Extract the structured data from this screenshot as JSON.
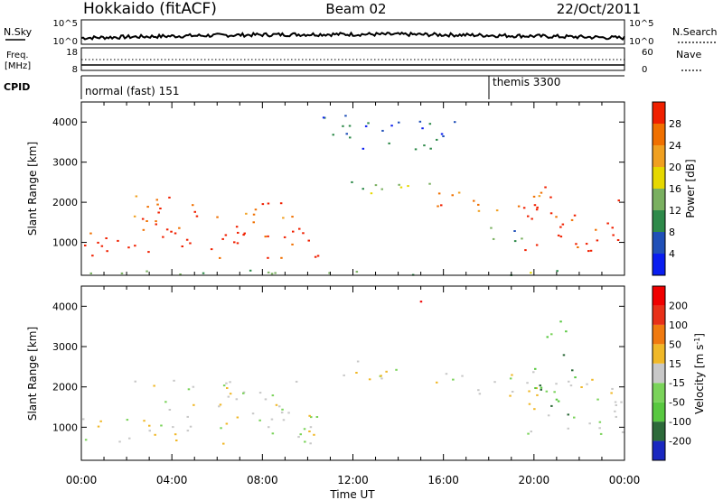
{
  "header": {
    "radar": "Hokkaido (fitACF)",
    "beam": "Beam 02",
    "date": "22/Oct/2011"
  },
  "summary": {
    "nsky_label": "N.Sky",
    "nsky_ticks": [
      "10^5",
      "10^0"
    ],
    "nsearch_label": "N.Search",
    "nsearch_ticks": [
      "10^5",
      "10^0"
    ],
    "freq_label_1": "Freq.",
    "freq_label_2": "[MHz]",
    "freq_ticks": [
      "18",
      "8"
    ],
    "nave_label": "Nave",
    "nave_ticks": [
      "60",
      "0"
    ],
    "cpid_label": "CPID",
    "cpid_segments": [
      {
        "label": "normal (fast) 151",
        "start_hour": 0
      },
      {
        "label": "themis 3300",
        "start_hour": 18.0
      }
    ]
  },
  "axes": {
    "ylabel": "Slant Range [km]",
    "yticks": [
      "4000",
      "3000",
      "2000",
      "1000"
    ],
    "xticks": [
      "00:00",
      "04:00",
      "08:00",
      "12:00",
      "16:00",
      "20:00",
      "00:00"
    ],
    "xlabel": "Time UT"
  },
  "chart_data": [
    {
      "type": "heatmap",
      "name": "power",
      "x_range_hours": [
        0,
        24
      ],
      "y_range_km": [
        180,
        4500
      ],
      "colorbar_label": "Power [dB]",
      "colorbar_ticks": [
        "28",
        "24",
        "20",
        "16",
        "12",
        "8",
        "4"
      ],
      "colors": [
        "#0a1ef0",
        "#2050b8",
        "#2e8a4a",
        "#7ab060",
        "#e6d800",
        "#f0a020",
        "#f07000",
        "#f02000"
      ],
      "regions": [
        {
          "t0": 0.0,
          "t1": 10.5,
          "r0": 600,
          "r1": 1500,
          "level": 7
        },
        {
          "t0": 2.0,
          "t1": 9.5,
          "r0": 1500,
          "r1": 2200,
          "level": 6
        },
        {
          "t0": 11.5,
          "t1": 15.5,
          "r0": 2200,
          "r1": 2700,
          "level": 3
        },
        {
          "t0": 15.5,
          "t1": 20.5,
          "r0": 1800,
          "r1": 2400,
          "level": 6
        },
        {
          "t0": 19.5,
          "t1": 24.0,
          "r0": 800,
          "r1": 2200,
          "level": 7
        },
        {
          "t0": 17.5,
          "t1": 19.5,
          "r0": 1000,
          "r1": 1500,
          "level": 2
        },
        {
          "t0": 10.5,
          "t1": 16.5,
          "r0": 3300,
          "r1": 4200,
          "level": 1
        },
        {
          "t0": 0.0,
          "t1": 24.0,
          "r0": 180,
          "r1": 320,
          "level": 3
        }
      ]
    },
    {
      "type": "heatmap",
      "name": "velocity",
      "x_range_hours": [
        0,
        24
      ],
      "y_range_km": [
        180,
        4500
      ],
      "colorbar_label": "Velocity [m s^-1]",
      "colorbar_ticks": [
        "200",
        "100",
        "50",
        "15",
        "-15",
        "-50",
        "-100",
        "-200"
      ],
      "colors": [
        "#1a28c0",
        "#2d6a3a",
        "#58c840",
        "#7ad35a",
        "#c8c8c8",
        "#f0b828",
        "#f07a10",
        "#e83018",
        "#f00000"
      ],
      "regions": [
        {
          "t0": 0.0,
          "t1": 10.5,
          "r0": 600,
          "r1": 1500,
          "level": 4
        },
        {
          "t0": 2.0,
          "t1": 9.5,
          "r0": 1500,
          "r1": 2200,
          "level": 4
        },
        {
          "t0": 11.5,
          "t1": 15.5,
          "r0": 2200,
          "r1": 2700,
          "level": 4
        },
        {
          "t0": 15.5,
          "t1": 20.5,
          "r0": 1800,
          "r1": 2400,
          "level": 4
        },
        {
          "t0": 19.5,
          "t1": 24.0,
          "r0": 800,
          "r1": 2200,
          "level": 4
        },
        {
          "t0": 20.0,
          "t1": 22.0,
          "r0": 1200,
          "r1": 2500,
          "level": 2
        },
        {
          "t0": 20.5,
          "t1": 21.5,
          "r0": 2800,
          "r1": 3800,
          "level": 2
        },
        {
          "t0": 14.5,
          "t1": 15.2,
          "r0": 3800,
          "r1": 4200,
          "level": 8
        }
      ]
    }
  ]
}
